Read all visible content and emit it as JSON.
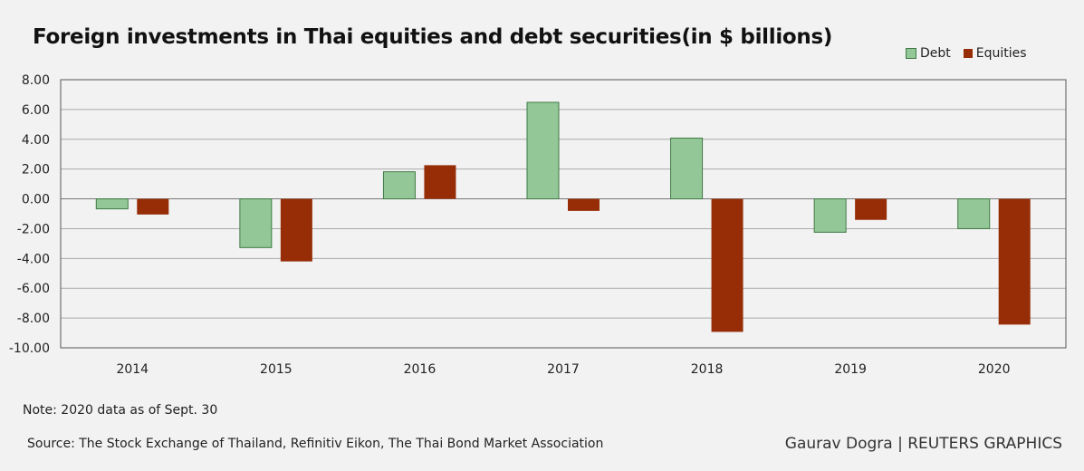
{
  "chart_data": {
    "type": "bar",
    "title": "Foreign investments in Thai equities and debt securities(in $ billions)",
    "categories": [
      "2014",
      "2015",
      "2016",
      "2017",
      "2018",
      "2019",
      "2020"
    ],
    "series": [
      {
        "name": "Debt",
        "color": "#93c797",
        "values": [
          -0.67,
          -3.27,
          1.82,
          6.48,
          4.08,
          -2.24,
          -2.0
        ]
      },
      {
        "name": "Equities",
        "color": "#962d07",
        "values": [
          -1.05,
          -4.2,
          2.26,
          -0.81,
          -8.93,
          -1.41,
          -8.44
        ]
      }
    ],
    "ylim": [
      -10,
      8
    ],
    "yticks": [
      "8.00",
      "6.00",
      "4.00",
      "2.00",
      "0.00",
      "-2.00",
      "-4.00",
      "-6.00",
      "-8.00",
      "-10.00"
    ],
    "ytick_values": [
      8,
      6,
      4,
      2,
      0,
      -2,
      -4,
      -6,
      -8,
      -10
    ],
    "grid": true,
    "legend": "top-right",
    "xlabel": "",
    "ylabel": ""
  },
  "note": "Note: 2020 data as of Sept. 30",
  "source": "Source: The Stock Exchange of Thailand, Refinitiv Eikon, The Thai Bond Market Association",
  "credit": "Gaurav Dogra | REUTERS GRAPHICS"
}
